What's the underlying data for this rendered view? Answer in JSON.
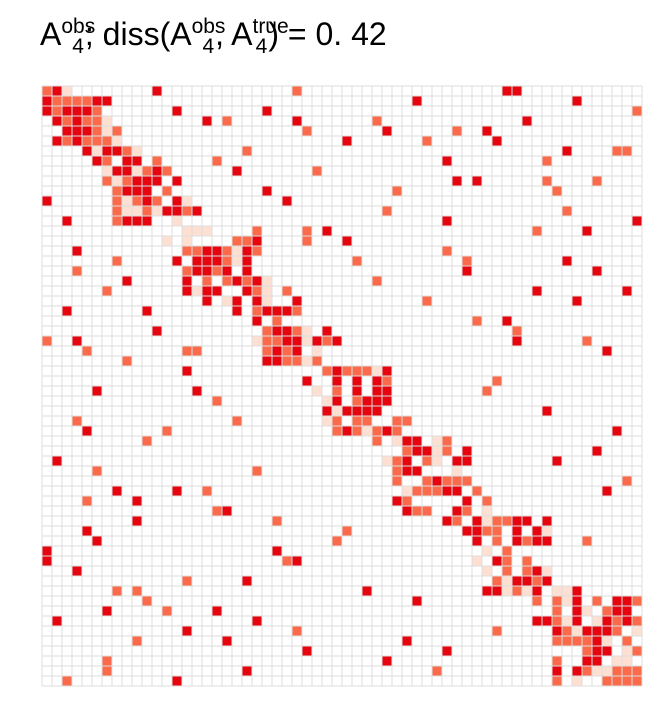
{
  "chart_data": {
    "type": "heatmap",
    "title": {
      "base1": "A",
      "sup1": "obs",
      "sub1": "4",
      "mid": "; diss(A",
      "sup2": "obs",
      "sub2": "4",
      "sep": ", A",
      "sup3": "true",
      "sub3": "4",
      "tail": ") = 0. 42"
    },
    "n": 60,
    "grid": true,
    "color_scale": {
      "low": "#fee0d2",
      "mid": "#fb6a4a",
      "high": "#e5050f",
      "grid": "#dddddd",
      "empty": "#ffffff"
    },
    "diagonal_band": {
      "rows": [
        0,
        59
      ],
      "width": 4,
      "fill_prob": 0.62
    },
    "dense_blocks": [
      {
        "rows": [
          1,
          6
        ]
      },
      {
        "rows": [
          7,
          13
        ]
      },
      {
        "rows": [
          14,
          21
        ]
      },
      {
        "rows": [
          22,
          27
        ]
      },
      {
        "rows": [
          28,
          34
        ]
      },
      {
        "rows": [
          35,
          42
        ]
      },
      {
        "rows": [
          43,
          50
        ]
      },
      {
        "rows": [
          51,
          59
        ]
      }
    ],
    "scattered_cells": [
      [
        0,
        1,
        3
      ],
      [
        0,
        47,
        3
      ],
      [
        1,
        5,
        3
      ],
      [
        2,
        13,
        3
      ],
      [
        3,
        25,
        3
      ],
      [
        3,
        16,
        3
      ],
      [
        4,
        34,
        3
      ],
      [
        4,
        26,
        2
      ],
      [
        4,
        44,
        3
      ],
      [
        5,
        38,
        2
      ],
      [
        6,
        52,
        3
      ],
      [
        6,
        58,
        2
      ],
      [
        7,
        40,
        3
      ],
      [
        8,
        19,
        3
      ],
      [
        9,
        41,
        3
      ],
      [
        9,
        50,
        2
      ],
      [
        10,
        22,
        3
      ],
      [
        10,
        51,
        2
      ],
      [
        11,
        0,
        3
      ],
      [
        12,
        34,
        2
      ],
      [
        13,
        2,
        3
      ],
      [
        13,
        59,
        3
      ],
      [
        14,
        26,
        2
      ],
      [
        14,
        54,
        3
      ],
      [
        15,
        30,
        3
      ],
      [
        16,
        3,
        3
      ],
      [
        16,
        40,
        2
      ],
      [
        17,
        7,
        2
      ],
      [
        17,
        52,
        3
      ],
      [
        18,
        42,
        3
      ],
      [
        18,
        3,
        2
      ],
      [
        19,
        33,
        2
      ],
      [
        20,
        6,
        2
      ],
      [
        20,
        49,
        3
      ],
      [
        21,
        53,
        3
      ],
      [
        22,
        2,
        3
      ],
      [
        23,
        43,
        2
      ],
      [
        23,
        46,
        3
      ],
      [
        24,
        11,
        3
      ],
      [
        25,
        0,
        2
      ],
      [
        25,
        47,
        3
      ],
      [
        26,
        15,
        2
      ],
      [
        26,
        56,
        3
      ],
      [
        27,
        8,
        2
      ],
      [
        28,
        14,
        3
      ],
      [
        29,
        45,
        2
      ],
      [
        30,
        5,
        3
      ],
      [
        31,
        17,
        2
      ],
      [
        32,
        50,
        3
      ],
      [
        33,
        3,
        2
      ],
      [
        34,
        57,
        3
      ],
      [
        35,
        10,
        2
      ],
      [
        36,
        55,
        3
      ],
      [
        37,
        1,
        3
      ],
      [
        38,
        21,
        2
      ],
      [
        39,
        58,
        2
      ],
      [
        40,
        13,
        3
      ],
      [
        41,
        4,
        2
      ],
      [
        42,
        17,
        2
      ],
      [
        43,
        9,
        3
      ],
      [
        44,
        30,
        2
      ],
      [
        45,
        5,
        3
      ],
      [
        45,
        54,
        2
      ],
      [
        46,
        0,
        3
      ],
      [
        47,
        24,
        2
      ],
      [
        48,
        3,
        3
      ],
      [
        49,
        14,
        2
      ],
      [
        50,
        7,
        2
      ],
      [
        51,
        37,
        3
      ],
      [
        52,
        12,
        2
      ],
      [
        53,
        1,
        3
      ],
      [
        54,
        25,
        2
      ],
      [
        55,
        18,
        3
      ],
      [
        55,
        9,
        2
      ],
      [
        56,
        40,
        3
      ],
      [
        57,
        6,
        2
      ],
      [
        58,
        20,
        3
      ],
      [
        59,
        2,
        2
      ]
    ]
  }
}
